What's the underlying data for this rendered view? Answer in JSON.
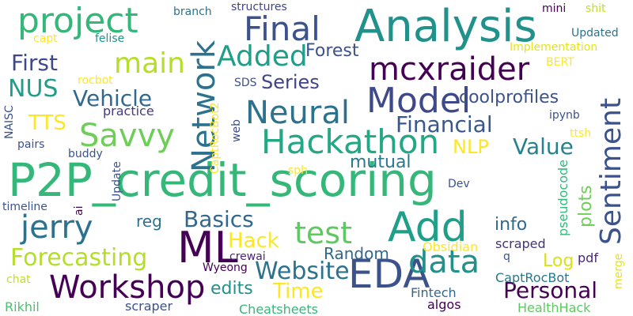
{
  "colors": {
    "background": "#ffffff",
    "palette": [
      "#440154",
      "#472c7a",
      "#3b528b",
      "#2c728e",
      "#21918c",
      "#28ae80",
      "#5ec962",
      "#addc30",
      "#fde725"
    ]
  },
  "words": [
    {
      "text": "P2P_credit_scoring",
      "color": "#35b779"
    },
    {
      "text": "Analysis",
      "color": "#21918c"
    },
    {
      "text": "Sentiment",
      "color": "#3b528b"
    },
    {
      "text": "Hackathon",
      "color": "#22a884"
    },
    {
      "text": "Network",
      "color": "#2c728e"
    },
    {
      "text": "project",
      "color": "#35b779"
    },
    {
      "text": "Final",
      "color": "#3b528b"
    },
    {
      "text": "mcxraider",
      "color": "#440154"
    },
    {
      "text": "Model",
      "color": "#3e4989"
    },
    {
      "text": "Neural",
      "color": "#2c728e"
    },
    {
      "text": "Add",
      "color": "#1f9e89"
    },
    {
      "text": "ML",
      "color": "#440154"
    },
    {
      "text": "EDA",
      "color": "#3b528b"
    },
    {
      "text": "Workshop",
      "color": "#440154"
    },
    {
      "text": "data",
      "color": "#21918c"
    },
    {
      "text": "Savvy",
      "color": "#6ece58"
    },
    {
      "text": "jerry",
      "color": "#2c728e"
    },
    {
      "text": "main",
      "color": "#b5de2b"
    },
    {
      "text": "Added",
      "color": "#1f9e89"
    },
    {
      "text": "test",
      "color": "#5ec962"
    },
    {
      "text": "Forecasting",
      "color": "#b5de2b"
    },
    {
      "text": "Website",
      "color": "#2c728e"
    },
    {
      "text": "Personal",
      "color": "#440154"
    },
    {
      "text": "Financial",
      "color": "#38588c"
    },
    {
      "text": "Vehicle",
      "color": "#31688e"
    },
    {
      "text": "NUS",
      "color": "#1f9e89"
    },
    {
      "text": "Series",
      "color": "#414487"
    },
    {
      "text": "First",
      "color": "#3e4989"
    },
    {
      "text": "Value",
      "color": "#26828e"
    },
    {
      "text": "Basics",
      "color": "#31688e"
    },
    {
      "text": "Hack",
      "color": "#fde725"
    },
    {
      "text": "Time",
      "color": "#fde725"
    },
    {
      "text": "TTS",
      "color": "#fde725"
    },
    {
      "text": "NLP",
      "color": "#fde725"
    },
    {
      "text": "coolprofiles",
      "color": "#3b528b"
    },
    {
      "text": "Forest",
      "color": "#3b528b"
    },
    {
      "text": "mutual",
      "color": "#2a788e"
    },
    {
      "text": "Random",
      "color": "#31688e"
    },
    {
      "text": "plots",
      "color": "#6ece58"
    },
    {
      "text": "info",
      "color": "#31688e"
    },
    {
      "text": "Log",
      "color": "#d8e219"
    },
    {
      "text": "edits",
      "color": "#21918c"
    },
    {
      "text": "reg",
      "color": "#2c728e"
    },
    {
      "text": "practice",
      "color": "#443983"
    },
    {
      "text": "pdf",
      "color": "#482878"
    },
    {
      "text": "pseudocode",
      "color": "#35b779"
    },
    {
      "text": "scraped",
      "color": "#46327e"
    },
    {
      "text": "Obsidian",
      "color": "#fde725"
    },
    {
      "text": "CaptRocBot",
      "color": "#2a788e"
    },
    {
      "text": "HealthHack",
      "color": "#5ec962"
    },
    {
      "text": "Fintech",
      "color": "#31688e"
    },
    {
      "text": "algos",
      "color": "#440154"
    },
    {
      "text": "Cheatsheets",
      "color": "#35b779"
    },
    {
      "text": "scraper",
      "color": "#3b528b"
    },
    {
      "text": "Rikhil",
      "color": "#4ac16d"
    },
    {
      "text": "chat",
      "color": "#c2df23"
    },
    {
      "text": "Wyeong",
      "color": "#440154"
    },
    {
      "text": "crewai",
      "color": "#482878"
    },
    {
      "text": "merge",
      "color": "#e5e419"
    },
    {
      "text": "q",
      "color": "#3b528b"
    },
    {
      "text": "Dev",
      "color": "#3b528b"
    },
    {
      "text": "sph",
      "color": "#fde725"
    },
    {
      "text": "Update",
      "color": "#3b528b"
    },
    {
      "text": "timeline",
      "color": "#3b528b"
    },
    {
      "text": "ai",
      "color": "#440154"
    },
    {
      "text": "NAISC",
      "color": "#3b528b"
    },
    {
      "text": "pairs",
      "color": "#3b528b"
    },
    {
      "text": "buddy",
      "color": "#3b528b"
    },
    {
      "text": "CaptRocBot2",
      "color": "#fde725"
    },
    {
      "text": "web",
      "color": "#3b528b"
    },
    {
      "text": "SDS",
      "color": "#3b528b"
    },
    {
      "text": "rocbot",
      "color": "#fde725"
    },
    {
      "text": "capt",
      "color": "#fde725"
    },
    {
      "text": "felise",
      "color": "#21918c"
    },
    {
      "text": "branch",
      "color": "#2c728e"
    },
    {
      "text": "structures",
      "color": "#414487"
    },
    {
      "text": "mini",
      "color": "#440154"
    },
    {
      "text": "shit",
      "color": "#c2df23"
    },
    {
      "text": "Updated",
      "color": "#2c728e"
    },
    {
      "text": "Implementation",
      "color": "#e5e419"
    },
    {
      "text": "BERT",
      "color": "#fde725"
    },
    {
      "text": "ipynb",
      "color": "#3b528b"
    },
    {
      "text": "ttsh",
      "color": "#fde725"
    }
  ]
}
